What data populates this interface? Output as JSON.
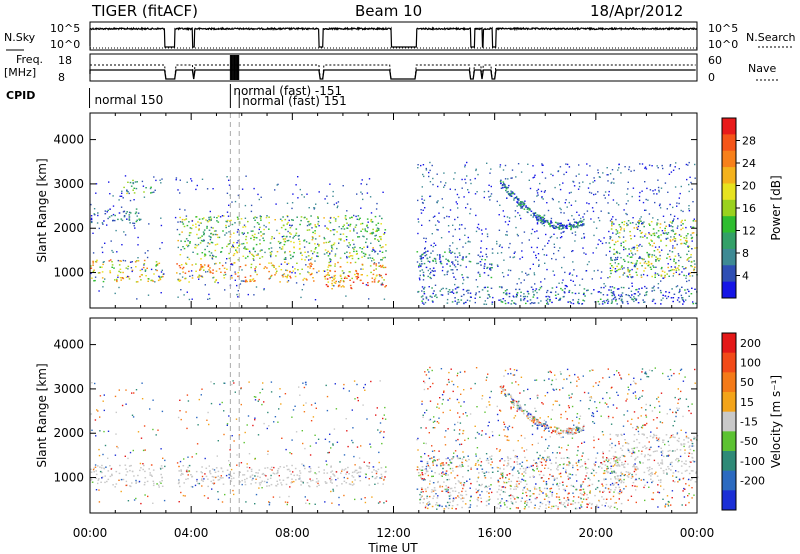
{
  "header": {
    "title": "TIGER (fitACF)",
    "beam": "Beam 10",
    "date": "18/Apr/2012"
  },
  "status_panels": {
    "nsky_label": "N.Sky",
    "nsky_ticks": [
      "10^5",
      "10^0"
    ],
    "nsearch_label": "N.Search",
    "nsearch_ticks": [
      "10^5",
      "10^0"
    ],
    "freq_label_1": "Freq.",
    "freq_label_2": "[MHz]",
    "freq_ticks": [
      "18",
      "8"
    ],
    "nave_label": "Nave",
    "nave_ticks": [
      "60",
      "0"
    ],
    "cpid_label": "CPID",
    "cpid_entries": [
      {
        "text": "normal 150",
        "start_hour": 0.1
      },
      {
        "text": "normal (fast) -151",
        "start_hour": 5.55
      },
      {
        "text": "normal (fast) 151",
        "start_hour": 5.9
      }
    ],
    "data_gaps_hours": [
      [
        2.95,
        3.35
      ],
      [
        4.05,
        4.12
      ],
      [
        9.05,
        9.2
      ],
      [
        11.9,
        12.9
      ],
      [
        15.05,
        15.2
      ],
      [
        15.5,
        15.55
      ],
      [
        15.9,
        16.05
      ]
    ]
  },
  "chart_data": [
    {
      "type": "heatmap",
      "title": "Power",
      "ylabel": "Slant Range [km]",
      "xlabel": "Time UT",
      "x_ticks": [
        "00:00",
        "04:00",
        "08:00",
        "12:00",
        "16:00",
        "20:00",
        "00:00"
      ],
      "xlim_hours": [
        0,
        24
      ],
      "ylim_km": [
        200,
        4600
      ],
      "y_ticks": [
        1000,
        2000,
        3000,
        4000
      ],
      "colorbar": {
        "label": "Power [dB]",
        "ticks": [
          4,
          8,
          12,
          16,
          20,
          24,
          28
        ],
        "range": [
          0,
          32
        ],
        "colors": [
          "#1515e6",
          "#2f4fb4",
          "#3e8a94",
          "#33a068",
          "#2fbd30",
          "#9ad21f",
          "#e7e21f",
          "#f4b21c",
          "#f7801a",
          "#f55519",
          "#e81b1b"
        ]
      },
      "echo_regions": [
        {
          "t0": 0.0,
          "t1": 2.9,
          "r0": 800,
          "r1": 1300,
          "level": 20
        },
        {
          "t0": 0.0,
          "t1": 2.0,
          "r0": 2100,
          "r1": 2450,
          "level": 7
        },
        {
          "t0": 1.3,
          "t1": 2.5,
          "r0": 2800,
          "r1": 3100,
          "level": 12
        },
        {
          "t0": 3.4,
          "t1": 11.7,
          "r0": 800,
          "r1": 1250,
          "level": 22
        },
        {
          "t0": 3.4,
          "t1": 11.7,
          "r0": 1300,
          "r1": 2300,
          "level": 14
        },
        {
          "t0": 9.3,
          "t1": 11.7,
          "r0": 650,
          "r1": 1000,
          "level": 26
        },
        {
          "t0": 12.9,
          "t1": 21.0,
          "r0": 300,
          "r1": 700,
          "level": 6
        },
        {
          "t0": 12.9,
          "t1": 16.0,
          "r0": 900,
          "r1": 1500,
          "level": 7
        },
        {
          "t0": 16.2,
          "t1": 19.5,
          "r0": 1950,
          "r1": 3100,
          "level": 7
        },
        {
          "t0": 20.5,
          "t1": 24.0,
          "r0": 900,
          "r1": 2200,
          "level": 16
        },
        {
          "t0": 20.5,
          "t1": 24.0,
          "r0": 300,
          "r1": 700,
          "level": 6
        }
      ]
    },
    {
      "type": "heatmap",
      "title": "Velocity",
      "ylabel": "Slant Range [km]",
      "xlabel": "Time UT",
      "x_ticks": [
        "00:00",
        "04:00",
        "08:00",
        "12:00",
        "16:00",
        "20:00",
        "00:00"
      ],
      "xlim_hours": [
        0,
        24
      ],
      "ylim_km": [
        200,
        4600
      ],
      "y_ticks": [
        1000,
        2000,
        3000,
        4000
      ],
      "colorbar": {
        "label": "Velocity [m s⁻¹]",
        "ticks": [
          "200",
          "100",
          "50",
          "15",
          "-15",
          "-50",
          "-100",
          "-200"
        ],
        "colors": [
          "#1b2fd6",
          "#2c6ac0",
          "#2f8a77",
          "#5cc232",
          "#c9c9c9",
          "#f3a41a",
          "#f47a18",
          "#f24a18",
          "#e41818"
        ]
      },
      "echo_regions": [
        {
          "t0": 0.0,
          "t1": 2.9,
          "r0": 800,
          "r1": 1300,
          "level": "ground"
        },
        {
          "t0": 3.4,
          "t1": 11.7,
          "r0": 800,
          "r1": 1300,
          "level": "ground"
        },
        {
          "t0": 20.5,
          "t1": 24.0,
          "r0": 900,
          "r1": 2000,
          "level": "ground"
        },
        {
          "t0": 16.2,
          "t1": 19.5,
          "r0": 1950,
          "r1": 3100,
          "level": "mixed"
        },
        {
          "t0": 12.9,
          "t1": 21.0,
          "r0": 300,
          "r1": 1500,
          "level": "mixed"
        }
      ]
    }
  ]
}
